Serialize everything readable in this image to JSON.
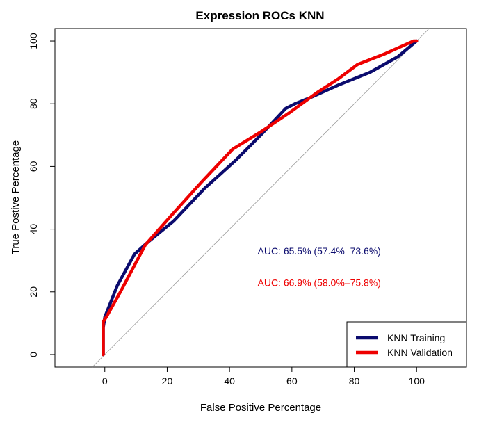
{
  "chart_data": {
    "type": "line",
    "title": "Expression ROCs KNN",
    "xlabel": "False Positive Percentage",
    "ylabel": "True Postive Percentage",
    "xlim": [
      -16,
      116
    ],
    "ylim": [
      -4,
      104
    ],
    "xticks": [
      0,
      20,
      40,
      60,
      80,
      100
    ],
    "yticks": [
      0,
      20,
      40,
      60,
      80,
      100
    ],
    "grid": false,
    "legend_position": "bottom-right",
    "reference_line": {
      "from": [
        -4,
        -4
      ],
      "to": [
        104,
        104
      ],
      "color": "#9a9a9a"
    },
    "series": [
      {
        "name": "KNN Training",
        "color": "#0b0b6e",
        "x": [
          -0.5,
          -0.5,
          0,
          4,
          9.5,
          14,
          22,
          32,
          42,
          50,
          58,
          61,
          66,
          75,
          85,
          94,
          100
        ],
        "y": [
          0,
          8.5,
          12,
          22,
          32,
          36,
          42.5,
          53,
          62,
          70,
          78.5,
          80,
          82,
          86,
          90,
          95,
          100
        ]
      },
      {
        "name": "KNN Validation",
        "color": "#ee0000",
        "x": [
          -0.5,
          -0.5,
          0.5,
          5,
          13,
          21,
          31,
          41,
          50,
          59,
          68,
          75,
          81,
          90,
          99,
          100
        ],
        "y": [
          0,
          10.5,
          12,
          20,
          35,
          44,
          55,
          65.5,
          71,
          77,
          83.5,
          88,
          92.5,
          96,
          100,
          100
        ]
      }
    ],
    "annotations": [
      {
        "text": "AUC: 65.5% (57.4%–73.6%)",
        "x": 49,
        "y": 33,
        "color": "#0b0b6e"
      },
      {
        "text": "AUC: 66.9% (58.0%–75.8%)",
        "x": 49,
        "y": 23,
        "color": "#ee0000"
      }
    ]
  }
}
